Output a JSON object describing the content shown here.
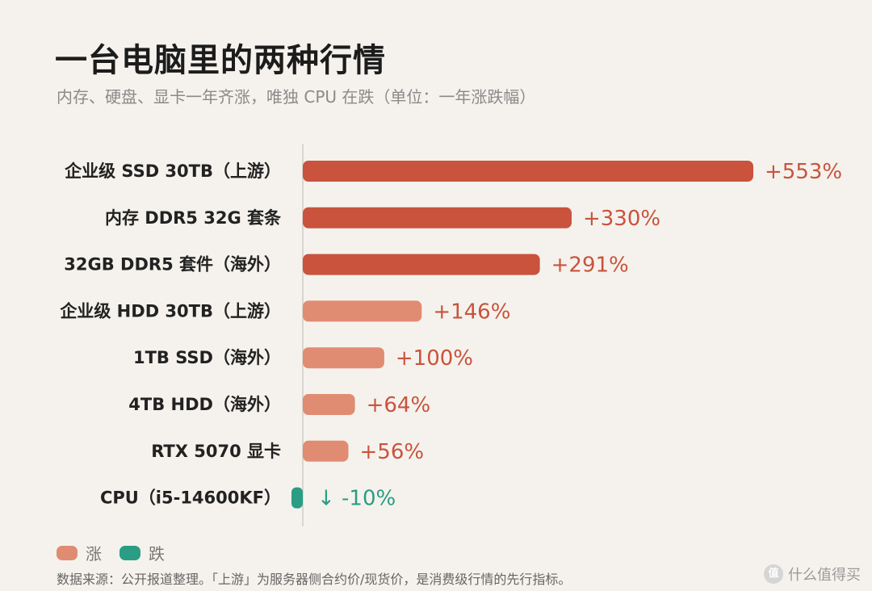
{
  "header": {
    "title": "一台电脑里的两种行情",
    "subtitle": "内存、硬盘、显卡一年齐涨，唯独 CPU 在跌（单位：一年涨跌幅）"
  },
  "chart_data": {
    "type": "bar",
    "orientation": "horizontal",
    "unit": "%",
    "categories": [
      "企业级 SSD 30TB（上游）",
      "内存 DDR5 32G 套条",
      "32GB DDR5 套件（海外）",
      "企业级 HDD 30TB（上游）",
      "1TB SSD（海外）",
      "4TB HDD（海外）",
      "RTX 5070 显卡",
      "CPU（i5-14600KF）"
    ],
    "values": [
      553,
      330,
      291,
      146,
      100,
      64,
      56,
      -10
    ],
    "data_labels": [
      "+553%",
      "+330%",
      "+291%",
      "+146%",
      "+100%",
      "+64%",
      "+56%",
      "↓ -10%"
    ],
    "shade": [
      "dark",
      "dark",
      "dark",
      "light",
      "light",
      "light",
      "light",
      "down"
    ],
    "xlim": [
      -10,
      553
    ],
    "grid": false,
    "colors": {
      "up_dark": "#c9533d",
      "up_light": "#e08c73",
      "down": "#2a9d84",
      "label_up": "#c9533d",
      "label_down": "#2a9d84",
      "axis": "#d9d6d1"
    }
  },
  "legend": {
    "items": [
      {
        "label": "涨",
        "color": "#e08c73"
      },
      {
        "label": "跌",
        "color": "#2a9d84"
      }
    ]
  },
  "footer": {
    "source": "数据来源：公开报道整理。「上游」为服务器侧合约价/现货价，是消费级行情的先行指标。",
    "watermark": "什么值得买",
    "watermark_icon": "值"
  }
}
